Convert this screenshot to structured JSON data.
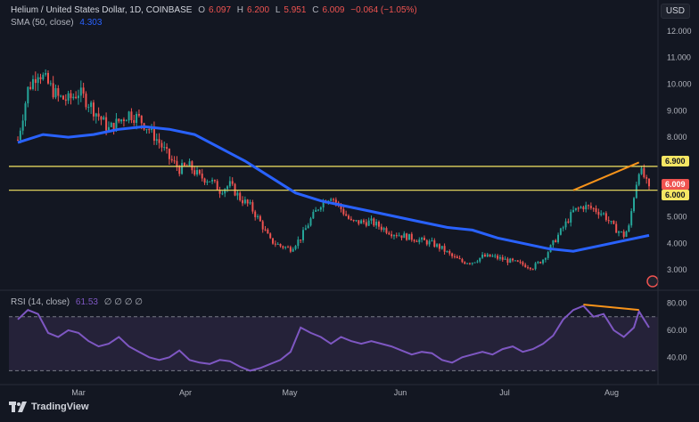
{
  "header": {
    "symbol": "Helium / United States Dollar, 1D, COINBASE",
    "o_label": "O",
    "o_value": "6.097",
    "h_label": "H",
    "h_value": "6.200",
    "l_label": "L",
    "l_value": "5.951",
    "c_label": "C",
    "c_value": "6.009",
    "change": "−0.064 (−1.05%)",
    "sma_label": "SMA (50, close)",
    "sma_value": "4.303",
    "rsi_label": "RSI (14, close)",
    "rsi_value": "61.53",
    "rsi_extra": "∅ ∅ ∅ ∅",
    "currency": "USD"
  },
  "price_axis_ticks": [
    "12.000",
    "11.000",
    "10.000",
    "9.000",
    "8.000",
    "5.000",
    "4.000",
    "3.000"
  ],
  "price_tags": {
    "resistance": "6.900",
    "last": "6.009",
    "support": "6.000"
  },
  "rsi_axis_ticks": [
    "80.00",
    "60.00",
    "40.00"
  ],
  "time_axis": [
    "Mar",
    "Apr",
    "May",
    "Jun",
    "Jul",
    "Aug"
  ],
  "branding": {
    "name": "TradingView"
  },
  "colors": {
    "background": "#131722",
    "up": "#26a69a",
    "down": "#ef5350",
    "sma": "#2962ff",
    "horizontal_lines": "#f5e663",
    "trendline": "#f7931a",
    "rsi": "#7e57c2",
    "rsi_fill": "#2a2540"
  },
  "chart_data": {
    "type": "candlestick",
    "ylim": [
      2.5,
      12.5
    ],
    "horizontal_levels": [
      6.9,
      6.0
    ],
    "price_path": [
      [
        0,
        7.9
      ],
      [
        4,
        9.8
      ],
      [
        8,
        10.5
      ],
      [
        12,
        10.0
      ],
      [
        16,
        9.5
      ],
      [
        20,
        9.4
      ],
      [
        24,
        9.7
      ],
      [
        28,
        9.3
      ],
      [
        32,
        8.8
      ],
      [
        36,
        8.3
      ],
      [
        40,
        8.6
      ],
      [
        44,
        8.9
      ],
      [
        48,
        8.7
      ],
      [
        52,
        8.3
      ],
      [
        56,
        7.8
      ],
      [
        60,
        7.2
      ],
      [
        64,
        6.8
      ],
      [
        68,
        6.9
      ],
      [
        72,
        6.5
      ],
      [
        76,
        6.4
      ],
      [
        80,
        6.0
      ],
      [
        84,
        6.2
      ],
      [
        88,
        5.7
      ],
      [
        92,
        5.4
      ],
      [
        96,
        4.8
      ],
      [
        100,
        4.1
      ],
      [
        104,
        3.9
      ],
      [
        108,
        3.8
      ],
      [
        112,
        4.2
      ],
      [
        116,
        4.9
      ],
      [
        120,
        5.5
      ],
      [
        124,
        5.8
      ],
      [
        128,
        5.3
      ],
      [
        132,
        4.8
      ],
      [
        136,
        4.8
      ],
      [
        140,
        4.8
      ],
      [
        144,
        4.6
      ],
      [
        148,
        4.4
      ],
      [
        152,
        4.3
      ],
      [
        156,
        4.2
      ],
      [
        160,
        4.1
      ],
      [
        164,
        4.0
      ],
      [
        168,
        3.8
      ],
      [
        172,
        3.5
      ],
      [
        176,
        3.3
      ],
      [
        180,
        3.3
      ],
      [
        184,
        3.5
      ],
      [
        188,
        3.5
      ],
      [
        192,
        3.4
      ],
      [
        196,
        3.3
      ],
      [
        200,
        3.2
      ],
      [
        204,
        3.1
      ],
      [
        208,
        3.4
      ],
      [
        212,
        4.0
      ],
      [
        216,
        4.6
      ],
      [
        220,
        5.2
      ],
      [
        224,
        5.4
      ],
      [
        228,
        5.3
      ],
      [
        232,
        5.1
      ],
      [
        236,
        4.6
      ],
      [
        240,
        4.3
      ],
      [
        242,
        4.6
      ],
      [
        244,
        5.8
      ],
      [
        246,
        6.8
      ],
      [
        248,
        6.5
      ],
      [
        250,
        6.0
      ]
    ],
    "sma_path": [
      [
        0,
        7.8
      ],
      [
        10,
        8.1
      ],
      [
        20,
        8.0
      ],
      [
        30,
        8.1
      ],
      [
        40,
        8.3
      ],
      [
        50,
        8.4
      ],
      [
        60,
        8.3
      ],
      [
        70,
        8.1
      ],
      [
        80,
        7.6
      ],
      [
        90,
        7.1
      ],
      [
        100,
        6.5
      ],
      [
        110,
        5.9
      ],
      [
        120,
        5.6
      ],
      [
        130,
        5.4
      ],
      [
        140,
        5.2
      ],
      [
        150,
        5.0
      ],
      [
        160,
        4.8
      ],
      [
        170,
        4.6
      ],
      [
        180,
        4.5
      ],
      [
        190,
        4.2
      ],
      [
        200,
        4.0
      ],
      [
        210,
        3.8
      ],
      [
        220,
        3.7
      ],
      [
        230,
        3.9
      ],
      [
        240,
        4.1
      ],
      [
        250,
        4.3
      ]
    ],
    "rsi_path": [
      [
        0,
        68
      ],
      [
        4,
        75
      ],
      [
        8,
        72
      ],
      [
        12,
        58
      ],
      [
        16,
        55
      ],
      [
        20,
        60
      ],
      [
        24,
        58
      ],
      [
        28,
        52
      ],
      [
        32,
        48
      ],
      [
        36,
        50
      ],
      [
        40,
        55
      ],
      [
        44,
        48
      ],
      [
        48,
        44
      ],
      [
        52,
        40
      ],
      [
        56,
        38
      ],
      [
        60,
        40
      ],
      [
        64,
        45
      ],
      [
        68,
        38
      ],
      [
        72,
        36
      ],
      [
        76,
        35
      ],
      [
        80,
        38
      ],
      [
        84,
        37
      ],
      [
        88,
        33
      ],
      [
        92,
        30
      ],
      [
        96,
        32
      ],
      [
        100,
        35
      ],
      [
        104,
        38
      ],
      [
        108,
        44
      ],
      [
        112,
        62
      ],
      [
        116,
        58
      ],
      [
        120,
        55
      ],
      [
        124,
        50
      ],
      [
        128,
        55
      ],
      [
        132,
        52
      ],
      [
        136,
        50
      ],
      [
        140,
        52
      ],
      [
        144,
        50
      ],
      [
        148,
        48
      ],
      [
        152,
        45
      ],
      [
        156,
        42
      ],
      [
        160,
        44
      ],
      [
        164,
        43
      ],
      [
        168,
        38
      ],
      [
        172,
        36
      ],
      [
        176,
        40
      ],
      [
        180,
        42
      ],
      [
        184,
        44
      ],
      [
        188,
        42
      ],
      [
        192,
        46
      ],
      [
        196,
        48
      ],
      [
        200,
        44
      ],
      [
        204,
        46
      ],
      [
        208,
        50
      ],
      [
        212,
        56
      ],
      [
        216,
        68
      ],
      [
        220,
        75
      ],
      [
        224,
        78
      ],
      [
        228,
        70
      ],
      [
        232,
        72
      ],
      [
        236,
        60
      ],
      [
        240,
        55
      ],
      [
        244,
        62
      ],
      [
        246,
        74
      ],
      [
        248,
        68
      ],
      [
        250,
        62
      ]
    ],
    "rsi_ylim": [
      25,
      85
    ],
    "rsi_levels": [
      70,
      30
    ]
  }
}
